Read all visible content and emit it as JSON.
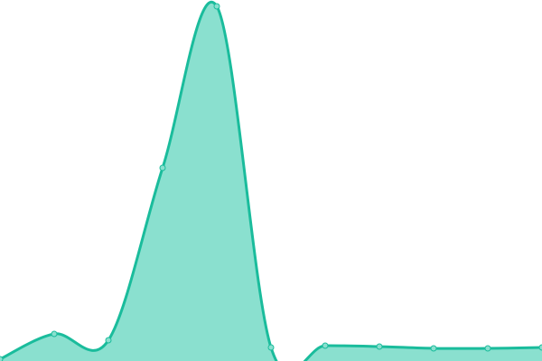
{
  "chart_data": {
    "type": "area",
    "title": "",
    "xlabel": "",
    "ylabel": "",
    "x": [
      0,
      1,
      2,
      3,
      4,
      5,
      6,
      7,
      8,
      9,
      10
    ],
    "values": [
      2,
      30,
      23,
      214,
      393,
      15,
      17,
      16,
      14,
      14,
      15
    ],
    "ylim": [
      0,
      400
    ],
    "grid": false,
    "axes_visible": false,
    "smooth": true,
    "show_points": true,
    "colors": {
      "line": "#1abc9c",
      "fill": "#8ae0cf",
      "point_fill": "#8ae0cf",
      "point_stroke": "#1abc9c"
    }
  }
}
